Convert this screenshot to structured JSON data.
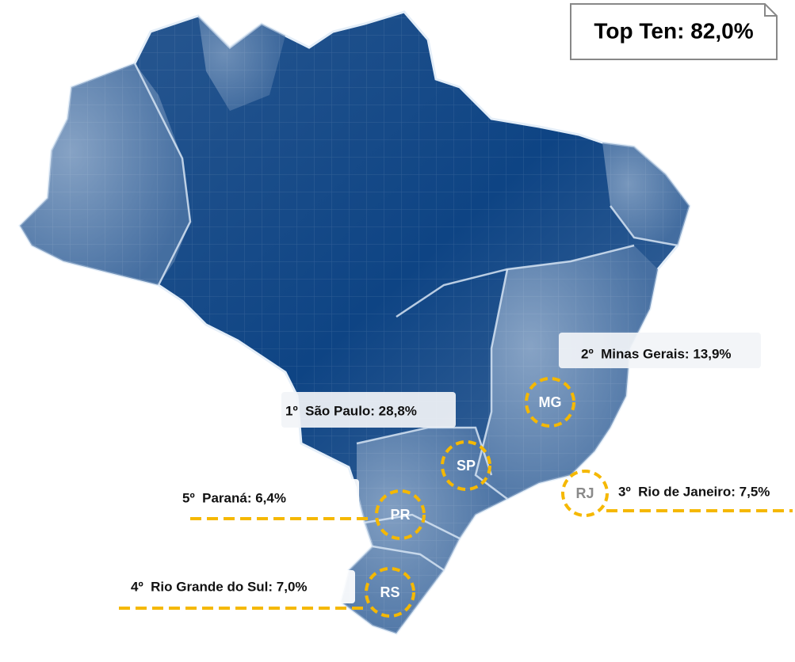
{
  "summary": "Top Ten: 82,0%",
  "regions": [
    {
      "abbr": "MG",
      "label": "2º  Minas Gerais: 13,9%"
    },
    {
      "abbr": "SP",
      "label": "1º  São Paulo: 28,8%"
    },
    {
      "abbr": "RJ",
      "label": "3º  Rio de Janeiro: 7,5%"
    },
    {
      "abbr": "PR",
      "label": "5º  Paraná: 6,4%"
    },
    {
      "abbr": "RS",
      "label": "4º  Rio Grande do Sul: 7,0%"
    }
  ]
}
